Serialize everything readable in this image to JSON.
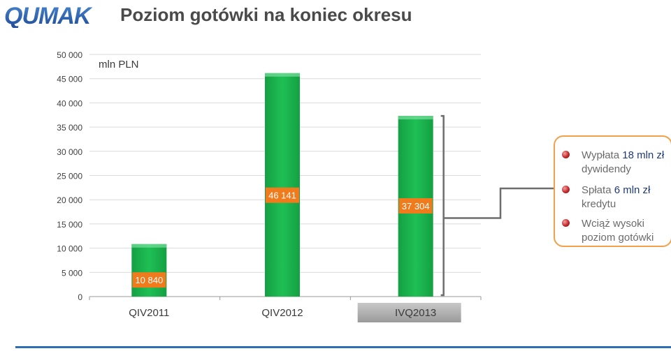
{
  "header": {
    "logo_text": "QUMAK",
    "title": "Poziom gotówki na koniec okresu"
  },
  "colors": {
    "bar": "#1fbf55",
    "bar_label_bg": "#f07b1c",
    "callout_border": "#f2a04a",
    "logo_blue": "#2a5aa8"
  },
  "chart_data": {
    "type": "bar",
    "unit_label": "mln PLN",
    "categories": [
      "QIV2011",
      "QIV2012",
      "IVQ2013"
    ],
    "values": [
      10840,
      46141,
      37304
    ],
    "data_labels": [
      "10 840",
      "46 141",
      "37 304"
    ],
    "ylim": [
      0,
      50000
    ],
    "yticks": [
      0,
      5000,
      10000,
      15000,
      20000,
      25000,
      30000,
      35000,
      40000,
      45000,
      50000
    ],
    "ytick_labels": [
      "0",
      "5 000",
      "10 000",
      "15 000",
      "20 000",
      "25 000",
      "30 000",
      "35 000",
      "40 000",
      "45 000",
      "50 000"
    ],
    "grid": true,
    "highlighted_category": "IVQ2013"
  },
  "callout": {
    "items": [
      {
        "prefix": "Wypłata ",
        "strong": "18 mln zł",
        "rest": "dywidendy"
      },
      {
        "prefix": "Spłata ",
        "strong": "6 mln zł",
        "rest": "kredytu"
      },
      {
        "prefix": "Wciąż wysoki",
        "strong": "",
        "rest": "poziom gotówki"
      }
    ]
  }
}
